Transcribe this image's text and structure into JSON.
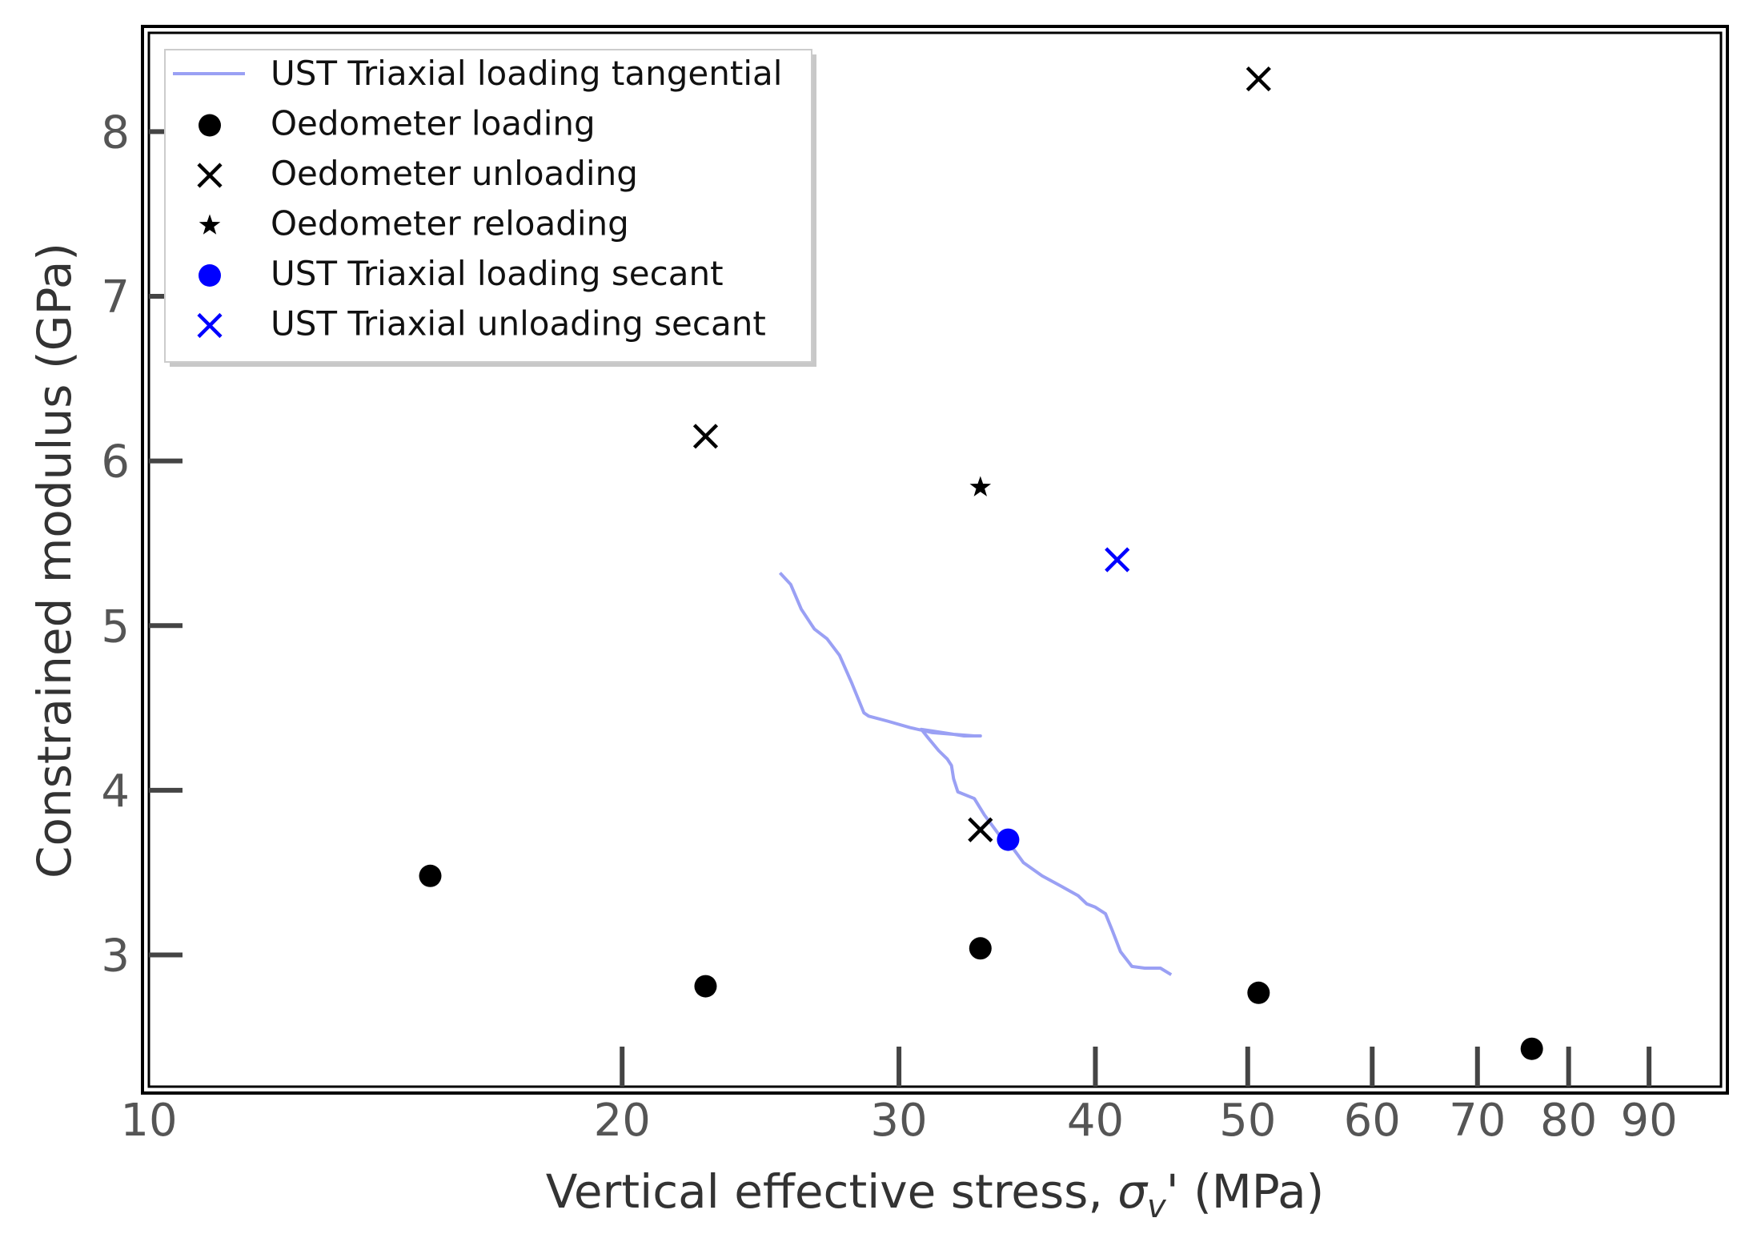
{
  "chart_data": {
    "type": "scatter",
    "xscale": "log",
    "xlabel_prefix": "Vertical effective stress, ",
    "xlabel_symbol": "σ",
    "xlabel_subscript": "v",
    "xlabel_suffix": "' (MPa)",
    "ylabel": "Constrained modulus (GPa)",
    "xlim": [
      10,
      100
    ],
    "ylim": [
      2.2,
      8.6
    ],
    "xticks": [
      10,
      20,
      30,
      40,
      50,
      60,
      70,
      80,
      90
    ],
    "xtick_labels": [
      "10",
      "20",
      "30",
      "40",
      "50",
      "60",
      "70",
      "80",
      "90"
    ],
    "yticks": [
      3,
      4,
      5,
      6,
      7,
      8
    ],
    "ytick_labels": [
      "3",
      "4",
      "5",
      "6",
      "7",
      "8"
    ],
    "legend_position": "upper-left",
    "series": [
      {
        "name": "UST Triaxial loading tangential",
        "marker": "line",
        "color": "#9aa0f4",
        "x": [
          25.2,
          25.6,
          26.0,
          26.5,
          27.0,
          27.5,
          28.0,
          28.5,
          28.7,
          29.5,
          30.5,
          31.5,
          32.5,
          33.0,
          33.8,
          33.5,
          32.5,
          31.5,
          31.0,
          31.3,
          31.8,
          32.2,
          32.4,
          32.5,
          32.7,
          33.5,
          34.0,
          34.8,
          35.5,
          36.0,
          37.0,
          38.0,
          39.0,
          39.5,
          40.0,
          40.6,
          41.0,
          41.5,
          42.2,
          43.0,
          44.0,
          44.7
        ],
        "y": [
          5.32,
          5.25,
          5.1,
          4.98,
          4.92,
          4.82,
          4.65,
          4.47,
          4.45,
          4.42,
          4.38,
          4.35,
          4.34,
          4.33,
          4.33,
          4.33,
          4.34,
          4.36,
          4.37,
          4.32,
          4.24,
          4.19,
          4.15,
          4.07,
          3.99,
          3.95,
          3.85,
          3.72,
          3.64,
          3.56,
          3.48,
          3.42,
          3.36,
          3.31,
          3.29,
          3.25,
          3.15,
          3.02,
          2.93,
          2.92,
          2.92,
          2.88
        ]
      },
      {
        "name": "Oedometer loading",
        "marker": "filled-circle",
        "color": "#000000",
        "x": [
          15.1,
          22.6,
          33.8,
          50.8,
          75.8
        ],
        "y": [
          3.48,
          2.81,
          3.04,
          2.77,
          2.43
        ]
      },
      {
        "name": "Oedometer unloading",
        "marker": "x",
        "color": "#000000",
        "x": [
          22.6,
          33.8,
          50.8
        ],
        "y": [
          6.15,
          3.76,
          8.32
        ]
      },
      {
        "name": "Oedometer reloading",
        "marker": "star",
        "color": "#000000",
        "x": [
          33.8
        ],
        "y": [
          5.84
        ]
      },
      {
        "name": "UST Triaxial loading secant",
        "marker": "filled-circle",
        "color": "#0000ff",
        "x": [
          35.2
        ],
        "y": [
          3.7
        ]
      },
      {
        "name": "UST Triaxial unloading secant",
        "marker": "x",
        "color": "#0000ff",
        "x": [
          41.3
        ],
        "y": [
          5.4
        ]
      }
    ]
  }
}
